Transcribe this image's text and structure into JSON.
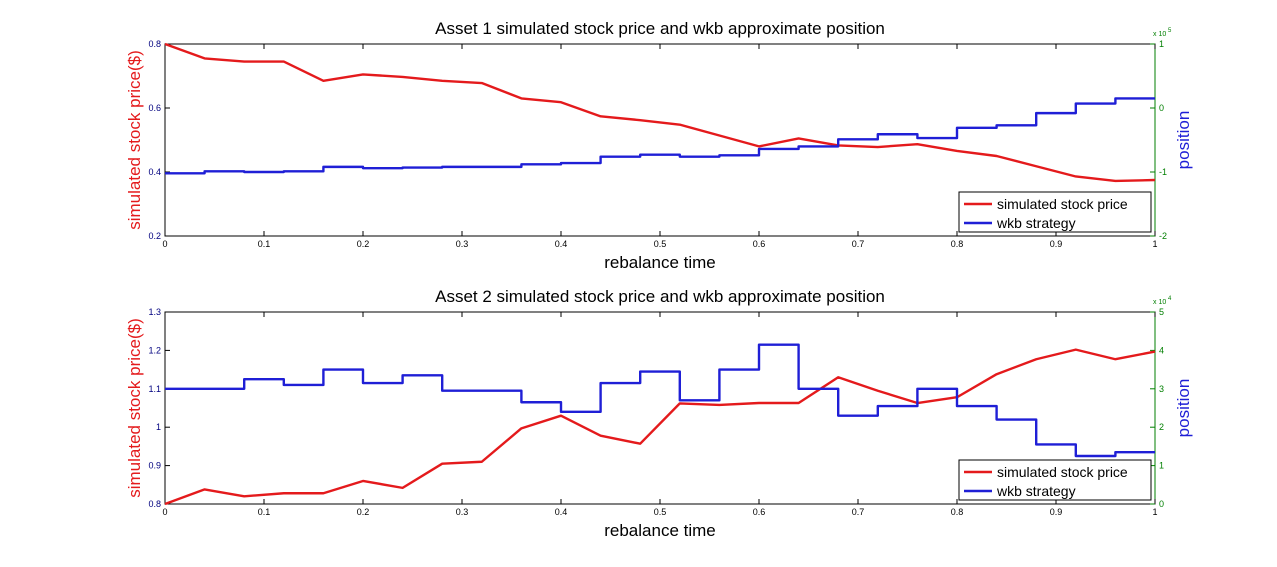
{
  "chart_data": [
    {
      "type": "line",
      "title": "Asset 1 simulated stock price and wkb approximate position",
      "xlabel": "rebalance time",
      "ylabel_left": "simulated stock price($)",
      "ylabel_right": "position",
      "right_axis_exponent": "x 10",
      "right_axis_exponent_power": "5",
      "xlim": [
        0,
        1
      ],
      "ylim_left": [
        0.2,
        0.8
      ],
      "ylim_right": [
        -2,
        1
      ],
      "x_ticks": [
        {
          "v": 0,
          "label": "0"
        },
        {
          "v": 0.1,
          "label": "0.1"
        },
        {
          "v": 0.2,
          "label": "0.2"
        },
        {
          "v": 0.3,
          "label": "0.3"
        },
        {
          "v": 0.4,
          "label": "0.4"
        },
        {
          "v": 0.5,
          "label": "0.5"
        },
        {
          "v": 0.6,
          "label": "0.6"
        },
        {
          "v": 0.7,
          "label": "0.7"
        },
        {
          "v": 0.8,
          "label": "0.8"
        },
        {
          "v": 0.9,
          "label": "0.9"
        },
        {
          "v": 1,
          "label": "1"
        }
      ],
      "y_left_ticks": [
        {
          "v": 0.2,
          "label": "0.2"
        },
        {
          "v": 0.4,
          "label": "0.4"
        },
        {
          "v": 0.6,
          "label": "0.6"
        },
        {
          "v": 0.8,
          "label": "0.8"
        }
      ],
      "y_right_ticks": [
        {
          "v": -2,
          "label": "-2"
        },
        {
          "v": -1,
          "label": "-1"
        },
        {
          "v": 0,
          "label": "0"
        },
        {
          "v": 1,
          "label": "1"
        }
      ],
      "legend_position": "bottom-right",
      "series": [
        {
          "name": "simulated stock price",
          "axis": "left",
          "style": "line",
          "color": "#e41a1c",
          "x": [
            0,
            0.04,
            0.08,
            0.12,
            0.16,
            0.2,
            0.24,
            0.28,
            0.32,
            0.36,
            0.4,
            0.44,
            0.48,
            0.52,
            0.56,
            0.6,
            0.64,
            0.68,
            0.72,
            0.76,
            0.8,
            0.84,
            0.88,
            0.92,
            0.96,
            1
          ],
          "y": [
            0.8,
            0.755,
            0.745,
            0.745,
            0.685,
            0.705,
            0.697,
            0.685,
            0.678,
            0.63,
            0.618,
            0.574,
            0.562,
            0.548,
            0.514,
            0.48,
            0.505,
            0.483,
            0.478,
            0.487,
            0.466,
            0.45,
            0.418,
            0.386,
            0.372,
            0.375
          ]
        },
        {
          "name": "wkb strategy",
          "axis": "right",
          "style": "step",
          "color": "#1f1fd6",
          "x": [
            0,
            0.04,
            0.08,
            0.12,
            0.16,
            0.2,
            0.24,
            0.28,
            0.32,
            0.36,
            0.4,
            0.44,
            0.48,
            0.52,
            0.56,
            0.6,
            0.64,
            0.68,
            0.72,
            0.76,
            0.8,
            0.84,
            0.88,
            0.92,
            0.96,
            1
          ],
          "y": [
            -1.02,
            -0.99,
            -1.0,
            -0.99,
            -0.92,
            -0.94,
            -0.93,
            -0.92,
            -0.92,
            -0.88,
            -0.86,
            -0.76,
            -0.73,
            -0.76,
            -0.74,
            -0.64,
            -0.6,
            -0.49,
            -0.41,
            -0.47,
            -0.31,
            -0.27,
            -0.08,
            0.07,
            0.15,
            0.15
          ]
        }
      ]
    },
    {
      "type": "line",
      "title": "Asset 2 simulated stock price and wkb approximate position",
      "xlabel": "rebalance time",
      "ylabel_left": "simulated stock price($)",
      "ylabel_right": "position",
      "right_axis_exponent": "x 10",
      "right_axis_exponent_power": "4",
      "xlim": [
        0,
        1
      ],
      "ylim_left": [
        0.8,
        1.3
      ],
      "ylim_right": [
        0,
        5
      ],
      "x_ticks": [
        {
          "v": 0,
          "label": "0"
        },
        {
          "v": 0.1,
          "label": "0.1"
        },
        {
          "v": 0.2,
          "label": "0.2"
        },
        {
          "v": 0.3,
          "label": "0.3"
        },
        {
          "v": 0.4,
          "label": "0.4"
        },
        {
          "v": 0.5,
          "label": "0.5"
        },
        {
          "v": 0.6,
          "label": "0.6"
        },
        {
          "v": 0.7,
          "label": "0.7"
        },
        {
          "v": 0.8,
          "label": "0.8"
        },
        {
          "v": 0.9,
          "label": "0.9"
        },
        {
          "v": 1,
          "label": "1"
        }
      ],
      "y_left_ticks": [
        {
          "v": 0.8,
          "label": "0.8"
        },
        {
          "v": 0.9,
          "label": "0.9"
        },
        {
          "v": 1.0,
          "label": "1"
        },
        {
          "v": 1.1,
          "label": "1.1"
        },
        {
          "v": 1.2,
          "label": "1.2"
        },
        {
          "v": 1.3,
          "label": "1.3"
        }
      ],
      "y_right_ticks": [
        {
          "v": 0,
          "label": "0"
        },
        {
          "v": 1,
          "label": "1"
        },
        {
          "v": 2,
          "label": "2"
        },
        {
          "v": 3,
          "label": "3"
        },
        {
          "v": 4,
          "label": "4"
        },
        {
          "v": 5,
          "label": "5"
        }
      ],
      "legend_position": "bottom-right",
      "series": [
        {
          "name": "simulated stock price",
          "axis": "left",
          "style": "line",
          "color": "#e41a1c",
          "x": [
            0,
            0.04,
            0.08,
            0.12,
            0.16,
            0.2,
            0.24,
            0.28,
            0.32,
            0.36,
            0.4,
            0.44,
            0.48,
            0.52,
            0.56,
            0.6,
            0.64,
            0.68,
            0.72,
            0.76,
            0.8,
            0.84,
            0.88,
            0.92,
            0.96,
            1
          ],
          "y": [
            0.8,
            0.838,
            0.82,
            0.828,
            0.828,
            0.86,
            0.842,
            0.905,
            0.91,
            0.997,
            1.03,
            0.978,
            0.957,
            1.062,
            1.058,
            1.063,
            1.063,
            1.13,
            1.095,
            1.063,
            1.078,
            1.138,
            1.177,
            1.202,
            1.177,
            1.197
          ]
        },
        {
          "name": "wkb strategy",
          "axis": "right",
          "style": "step",
          "color": "#1f1fd6",
          "x": [
            0,
            0.04,
            0.08,
            0.12,
            0.16,
            0.2,
            0.24,
            0.28,
            0.32,
            0.36,
            0.4,
            0.44,
            0.48,
            0.52,
            0.56,
            0.6,
            0.64,
            0.68,
            0.72,
            0.76,
            0.8,
            0.84,
            0.88,
            0.92,
            0.96,
            1
          ],
          "y": [
            3.0,
            3.0,
            3.25,
            3.1,
            3.5,
            3.15,
            3.35,
            2.95,
            2.95,
            2.65,
            2.4,
            3.15,
            3.45,
            2.7,
            3.5,
            4.15,
            3.0,
            2.3,
            2.55,
            3.0,
            2.55,
            2.2,
            1.55,
            1.25,
            1.35,
            1.35
          ]
        }
      ]
    }
  ]
}
